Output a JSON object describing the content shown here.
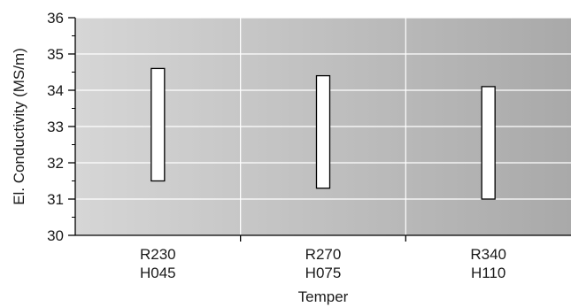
{
  "chart_data": {
    "type": "bar",
    "subtype": "floating-range",
    "categories": [
      [
        "R230",
        "H045"
      ],
      [
        "R270",
        "H075"
      ],
      [
        "R340",
        "H110"
      ]
    ],
    "ranges": [
      {
        "low": 31.5,
        "high": 34.6
      },
      {
        "low": 31.3,
        "high": 34.4
      },
      {
        "low": 31.0,
        "high": 34.1
      }
    ],
    "xlabel": "Temper",
    "ylabel": "El. Conductivity (MS/m)",
    "ylim": [
      30,
      36
    ],
    "yticks": [
      30,
      31,
      32,
      33,
      34,
      35,
      36
    ],
    "grid": true,
    "colors": {
      "plot_bg_left": "#d6d6d6",
      "plot_bg_right": "#a9a9a9",
      "grid": "#ffffff",
      "bar_fill": "#ffffff",
      "bar_stroke": "#000000",
      "axis": "#000000"
    }
  }
}
